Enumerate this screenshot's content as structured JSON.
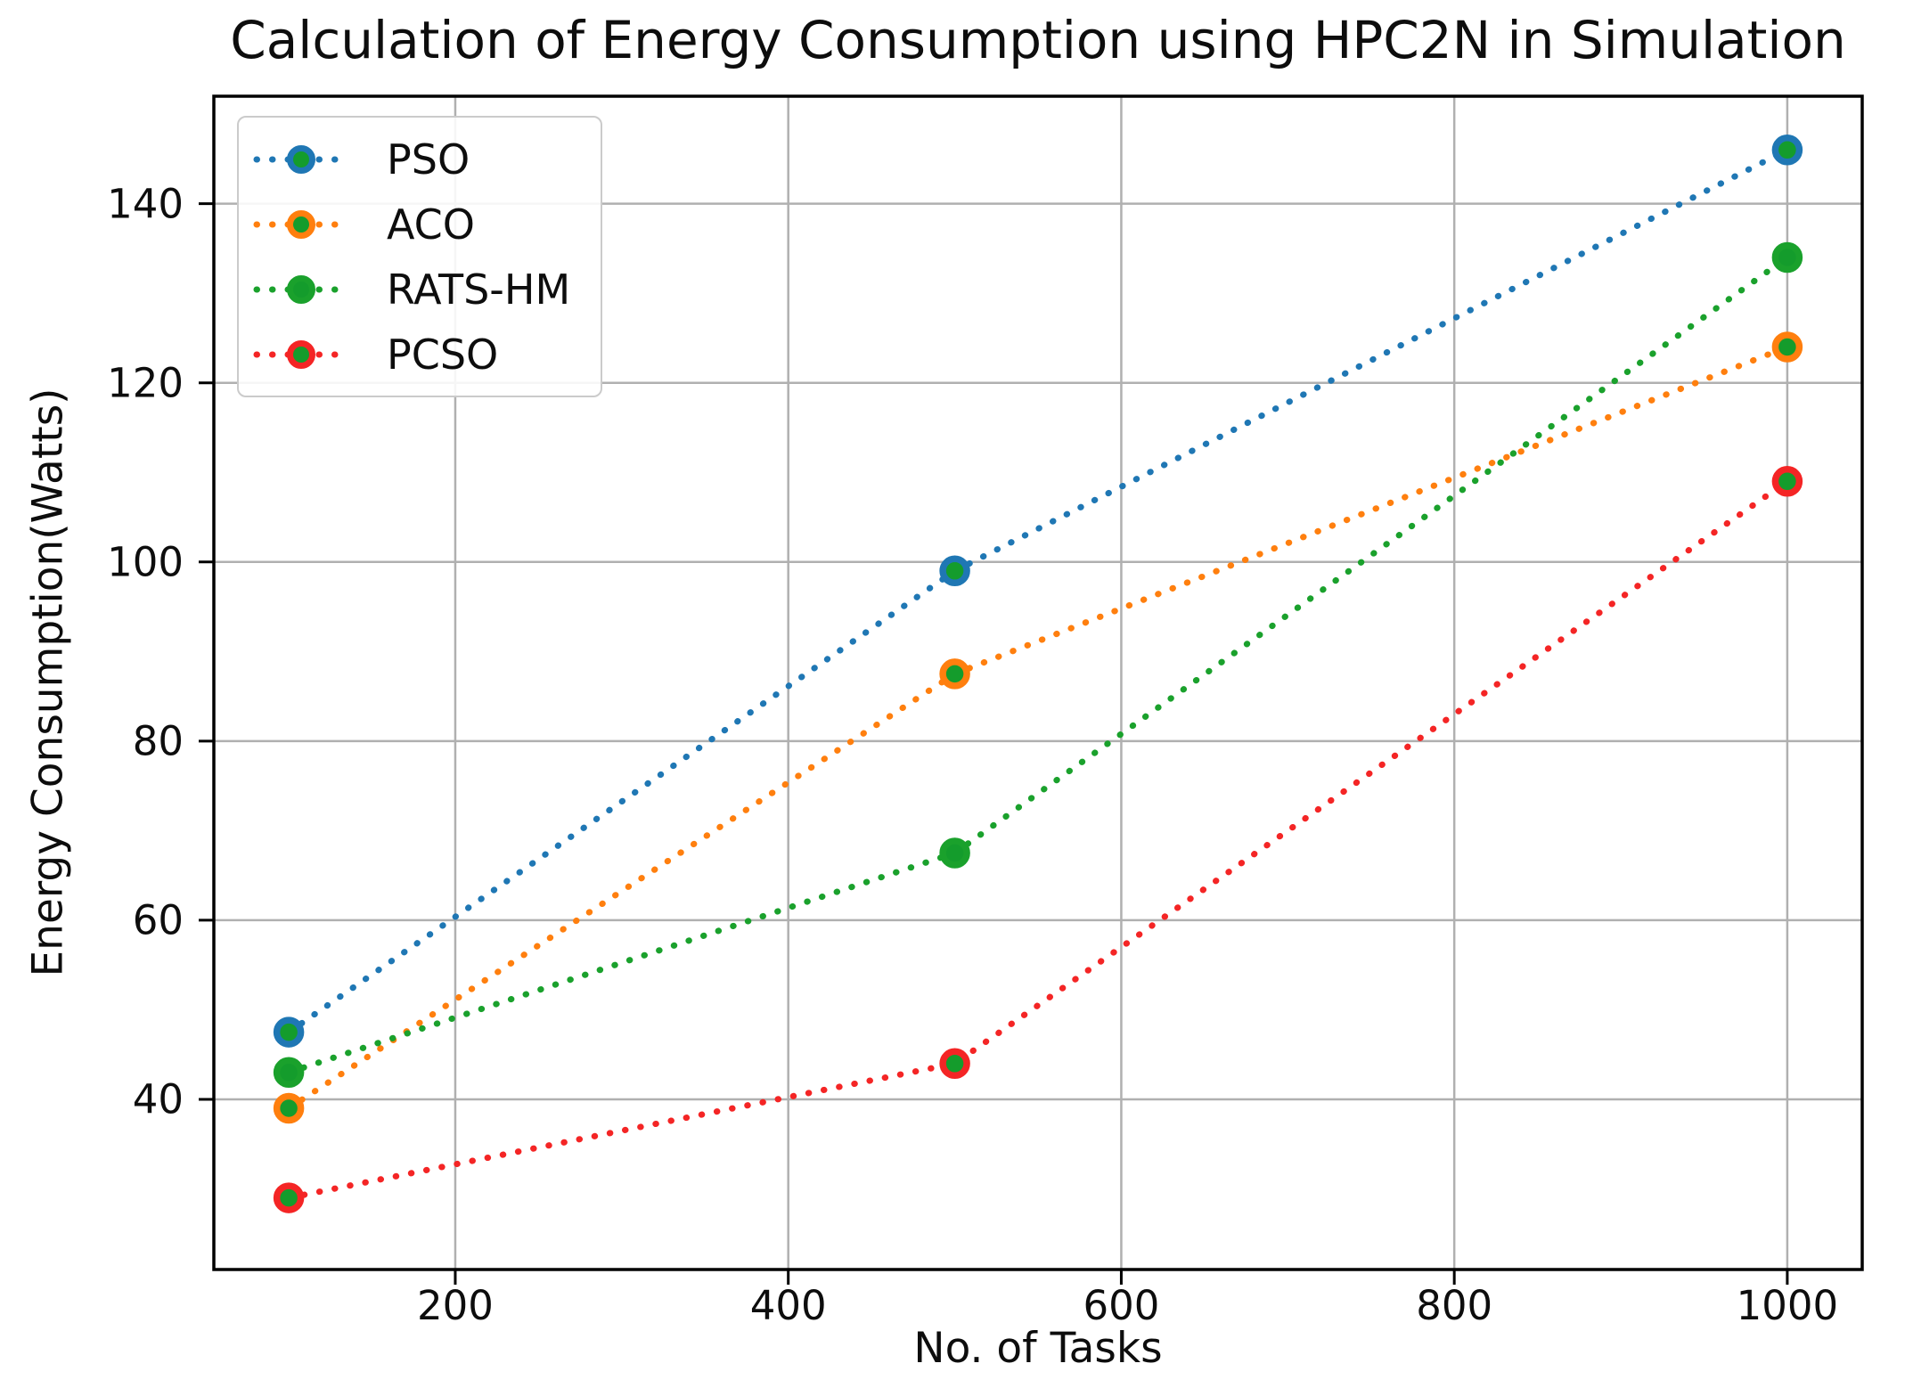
{
  "chart_data": {
    "type": "line",
    "title": "Calculation of Energy Consumption using HPC2N in Simulation",
    "xlabel": "No. of Tasks",
    "ylabel": "Energy Consumption(Watts)",
    "x": [
      100,
      500,
      1000
    ],
    "series": [
      {
        "name": "PSO",
        "color": "#1f77b4",
        "values": [
          47.5,
          99,
          146
        ]
      },
      {
        "name": "ACO",
        "color": "#ff7f0e",
        "values": [
          39,
          87.5,
          124
        ]
      },
      {
        "name": "RATS-HM",
        "color": "#1aa12c",
        "values": [
          43,
          67.5,
          134
        ]
      },
      {
        "name": "PCSO",
        "color": "#f42525",
        "values": [
          29,
          44,
          109
        ]
      }
    ],
    "line_style": "dotted",
    "marker": {
      "shape": "circle",
      "face_color": "#149c2c"
    },
    "xticks": [
      200,
      400,
      600,
      800,
      1000
    ],
    "yticks": [
      40,
      60,
      80,
      100,
      120,
      140
    ],
    "xlim": [
      55,
      1045
    ],
    "ylim": [
      21,
      152
    ],
    "grid": true,
    "grid_color": "#b0b0b0",
    "axis_color": "#000000",
    "legend": {
      "position": "upper-left"
    }
  }
}
